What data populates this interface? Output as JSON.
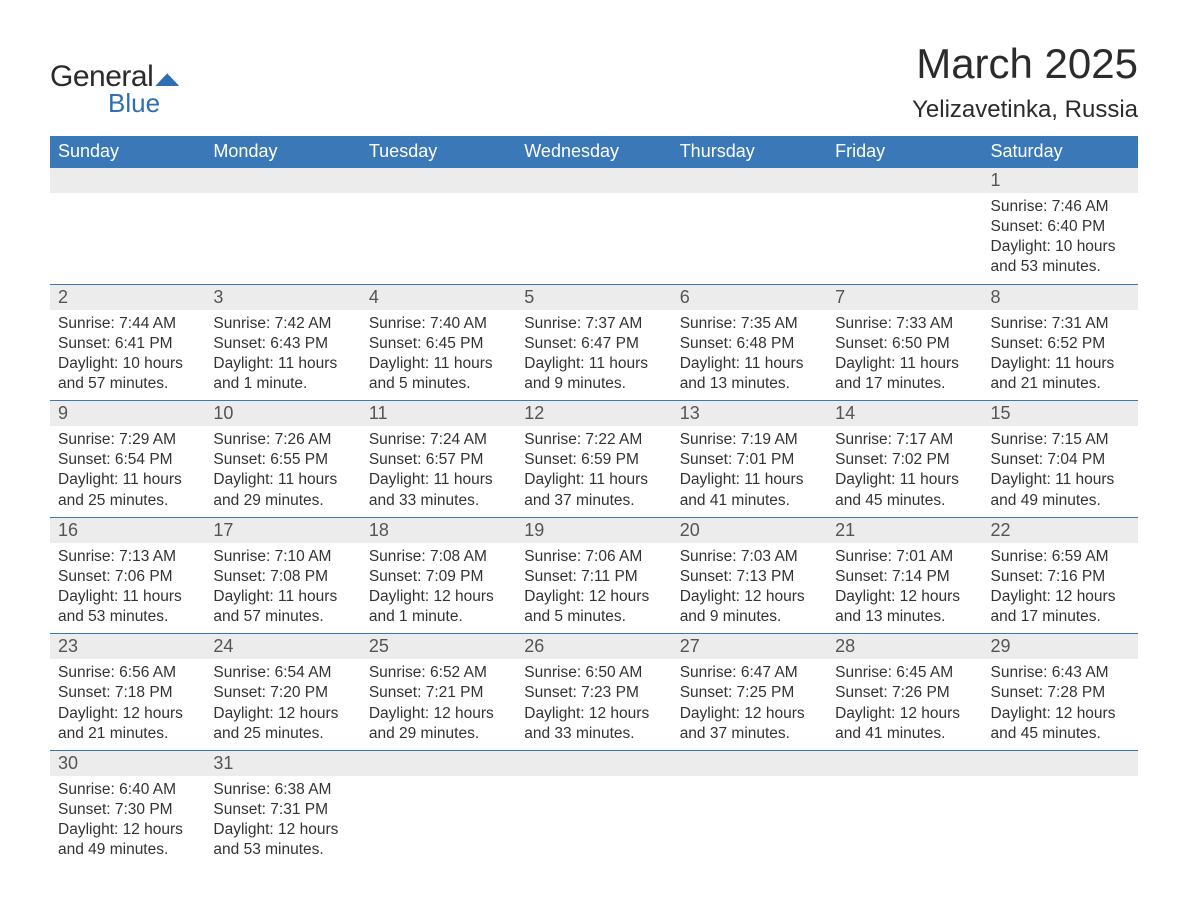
{
  "logo": {
    "line1": "General",
    "line2": "Blue"
  },
  "title": "March 2025",
  "location": "Yelizavetinka, Russia",
  "colors": {
    "header_bg": "#3a78b8",
    "header_text": "#ffffff",
    "daynum_bg": "#ececec",
    "daynum_text": "#555555",
    "body_text": "#333333",
    "row_divider": "#3a78b8",
    "logo_accent": "#2f6eb0"
  },
  "typography": {
    "title_fontsize": 42,
    "location_fontsize": 24,
    "header_fontsize": 18,
    "daynum_fontsize": 18,
    "body_fontsize": 15.5
  },
  "day_headers": [
    "Sunday",
    "Monday",
    "Tuesday",
    "Wednesday",
    "Thursday",
    "Friday",
    "Saturday"
  ],
  "weeks": [
    [
      null,
      null,
      null,
      null,
      null,
      null,
      {
        "n": "1",
        "sunrise": "Sunrise: 7:46 AM",
        "sunset": "Sunset: 6:40 PM",
        "day1": "Daylight: 10 hours",
        "day2": "and 53 minutes."
      }
    ],
    [
      {
        "n": "2",
        "sunrise": "Sunrise: 7:44 AM",
        "sunset": "Sunset: 6:41 PM",
        "day1": "Daylight: 10 hours",
        "day2": "and 57 minutes."
      },
      {
        "n": "3",
        "sunrise": "Sunrise: 7:42 AM",
        "sunset": "Sunset: 6:43 PM",
        "day1": "Daylight: 11 hours",
        "day2": "and 1 minute."
      },
      {
        "n": "4",
        "sunrise": "Sunrise: 7:40 AM",
        "sunset": "Sunset: 6:45 PM",
        "day1": "Daylight: 11 hours",
        "day2": "and 5 minutes."
      },
      {
        "n": "5",
        "sunrise": "Sunrise: 7:37 AM",
        "sunset": "Sunset: 6:47 PM",
        "day1": "Daylight: 11 hours",
        "day2": "and 9 minutes."
      },
      {
        "n": "6",
        "sunrise": "Sunrise: 7:35 AM",
        "sunset": "Sunset: 6:48 PM",
        "day1": "Daylight: 11 hours",
        "day2": "and 13 minutes."
      },
      {
        "n": "7",
        "sunrise": "Sunrise: 7:33 AM",
        "sunset": "Sunset: 6:50 PM",
        "day1": "Daylight: 11 hours",
        "day2": "and 17 minutes."
      },
      {
        "n": "8",
        "sunrise": "Sunrise: 7:31 AM",
        "sunset": "Sunset: 6:52 PM",
        "day1": "Daylight: 11 hours",
        "day2": "and 21 minutes."
      }
    ],
    [
      {
        "n": "9",
        "sunrise": "Sunrise: 7:29 AM",
        "sunset": "Sunset: 6:54 PM",
        "day1": "Daylight: 11 hours",
        "day2": "and 25 minutes."
      },
      {
        "n": "10",
        "sunrise": "Sunrise: 7:26 AM",
        "sunset": "Sunset: 6:55 PM",
        "day1": "Daylight: 11 hours",
        "day2": "and 29 minutes."
      },
      {
        "n": "11",
        "sunrise": "Sunrise: 7:24 AM",
        "sunset": "Sunset: 6:57 PM",
        "day1": "Daylight: 11 hours",
        "day2": "and 33 minutes."
      },
      {
        "n": "12",
        "sunrise": "Sunrise: 7:22 AM",
        "sunset": "Sunset: 6:59 PM",
        "day1": "Daylight: 11 hours",
        "day2": "and 37 minutes."
      },
      {
        "n": "13",
        "sunrise": "Sunrise: 7:19 AM",
        "sunset": "Sunset: 7:01 PM",
        "day1": "Daylight: 11 hours",
        "day2": "and 41 minutes."
      },
      {
        "n": "14",
        "sunrise": "Sunrise: 7:17 AM",
        "sunset": "Sunset: 7:02 PM",
        "day1": "Daylight: 11 hours",
        "day2": "and 45 minutes."
      },
      {
        "n": "15",
        "sunrise": "Sunrise: 7:15 AM",
        "sunset": "Sunset: 7:04 PM",
        "day1": "Daylight: 11 hours",
        "day2": "and 49 minutes."
      }
    ],
    [
      {
        "n": "16",
        "sunrise": "Sunrise: 7:13 AM",
        "sunset": "Sunset: 7:06 PM",
        "day1": "Daylight: 11 hours",
        "day2": "and 53 minutes."
      },
      {
        "n": "17",
        "sunrise": "Sunrise: 7:10 AM",
        "sunset": "Sunset: 7:08 PM",
        "day1": "Daylight: 11 hours",
        "day2": "and 57 minutes."
      },
      {
        "n": "18",
        "sunrise": "Sunrise: 7:08 AM",
        "sunset": "Sunset: 7:09 PM",
        "day1": "Daylight: 12 hours",
        "day2": "and 1 minute."
      },
      {
        "n": "19",
        "sunrise": "Sunrise: 7:06 AM",
        "sunset": "Sunset: 7:11 PM",
        "day1": "Daylight: 12 hours",
        "day2": "and 5 minutes."
      },
      {
        "n": "20",
        "sunrise": "Sunrise: 7:03 AM",
        "sunset": "Sunset: 7:13 PM",
        "day1": "Daylight: 12 hours",
        "day2": "and 9 minutes."
      },
      {
        "n": "21",
        "sunrise": "Sunrise: 7:01 AM",
        "sunset": "Sunset: 7:14 PM",
        "day1": "Daylight: 12 hours",
        "day2": "and 13 minutes."
      },
      {
        "n": "22",
        "sunrise": "Sunrise: 6:59 AM",
        "sunset": "Sunset: 7:16 PM",
        "day1": "Daylight: 12 hours",
        "day2": "and 17 minutes."
      }
    ],
    [
      {
        "n": "23",
        "sunrise": "Sunrise: 6:56 AM",
        "sunset": "Sunset: 7:18 PM",
        "day1": "Daylight: 12 hours",
        "day2": "and 21 minutes."
      },
      {
        "n": "24",
        "sunrise": "Sunrise: 6:54 AM",
        "sunset": "Sunset: 7:20 PM",
        "day1": "Daylight: 12 hours",
        "day2": "and 25 minutes."
      },
      {
        "n": "25",
        "sunrise": "Sunrise: 6:52 AM",
        "sunset": "Sunset: 7:21 PM",
        "day1": "Daylight: 12 hours",
        "day2": "and 29 minutes."
      },
      {
        "n": "26",
        "sunrise": "Sunrise: 6:50 AM",
        "sunset": "Sunset: 7:23 PM",
        "day1": "Daylight: 12 hours",
        "day2": "and 33 minutes."
      },
      {
        "n": "27",
        "sunrise": "Sunrise: 6:47 AM",
        "sunset": "Sunset: 7:25 PM",
        "day1": "Daylight: 12 hours",
        "day2": "and 37 minutes."
      },
      {
        "n": "28",
        "sunrise": "Sunrise: 6:45 AM",
        "sunset": "Sunset: 7:26 PM",
        "day1": "Daylight: 12 hours",
        "day2": "and 41 minutes."
      },
      {
        "n": "29",
        "sunrise": "Sunrise: 6:43 AM",
        "sunset": "Sunset: 7:28 PM",
        "day1": "Daylight: 12 hours",
        "day2": "and 45 minutes."
      }
    ],
    [
      {
        "n": "30",
        "sunrise": "Sunrise: 6:40 AM",
        "sunset": "Sunset: 7:30 PM",
        "day1": "Daylight: 12 hours",
        "day2": "and 49 minutes."
      },
      {
        "n": "31",
        "sunrise": "Sunrise: 6:38 AM",
        "sunset": "Sunset: 7:31 PM",
        "day1": "Daylight: 12 hours",
        "day2": "and 53 minutes."
      },
      null,
      null,
      null,
      null,
      null
    ]
  ]
}
